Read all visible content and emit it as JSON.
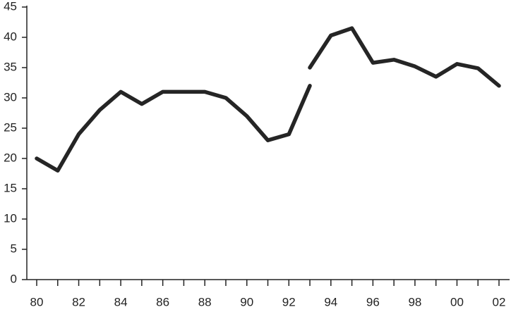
{
  "chart_data": {
    "type": "line",
    "categories": [
      "80",
      null,
      "82",
      null,
      "84",
      null,
      "86",
      null,
      "88",
      null,
      "90",
      null,
      "92",
      null,
      "94",
      null,
      "96",
      null,
      "98",
      null,
      "00",
      null,
      "02"
    ],
    "series": [
      {
        "color": "#252525",
        "values": [
          20,
          18,
          24,
          28,
          31,
          29,
          31,
          31,
          31,
          30,
          27,
          23,
          24,
          32,
          null,
          null,
          null,
          null,
          null,
          null,
          null,
          null,
          null
        ]
      },
      {
        "color": "#252525",
        "values": [
          null,
          null,
          null,
          null,
          null,
          null,
          null,
          null,
          null,
          null,
          null,
          null,
          null,
          35,
          40.3,
          41.5,
          35.8,
          36.3,
          35.2,
          33.5,
          35.6,
          34.9,
          32
        ]
      }
    ],
    "ylim": [
      0,
      45
    ],
    "yticks": [
      0,
      5,
      10,
      15,
      20,
      25,
      30,
      35,
      40,
      45
    ],
    "grid": false
  }
}
